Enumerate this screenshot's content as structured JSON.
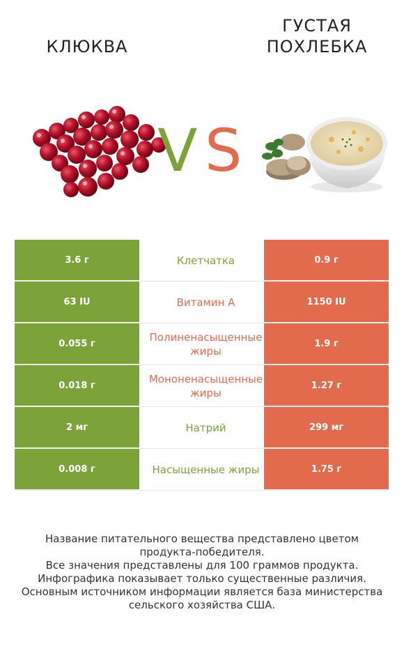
{
  "left_food": {
    "title": "КЛЮКВА",
    "image_icon": "cranberry-pile"
  },
  "right_food": {
    "title_line1": "ГУСТАЯ",
    "title_line2": "ПОХЛЕБКА",
    "image_icon": "chowder-bowl"
  },
  "vs": {
    "v": "V",
    "s": "S",
    "color_left": "#7ca33a",
    "color_right": "#e26b4e"
  },
  "rows": [
    {
      "left": "3.6 г",
      "name": "Клетчатка",
      "right": "0.9 г",
      "winner": "left"
    },
    {
      "left": "63 IU",
      "name": "Витамин A",
      "right": "1150 IU",
      "winner": "right"
    },
    {
      "left": "0.055 г",
      "name": "Полиненасыщенные жиры",
      "right": "1.9 г",
      "winner": "right"
    },
    {
      "left": "0.018 г",
      "name": "Мононенасыщенные жиры",
      "right": "1.27 г",
      "winner": "right"
    },
    {
      "left": "2 мг",
      "name": "Натрий",
      "right": "299 мг",
      "winner": "left"
    },
    {
      "left": "0.008 г",
      "name": "Насыщенные жиры",
      "right": "1.75 г",
      "winner": "left"
    }
  ],
  "footer": {
    "line1": "Название питательного вещества представлено цветом",
    "line2": "продукта-победителя.",
    "line3": "Все значения представлены для 100 граммов продукта.",
    "line4": "Инфографика показывает только существенные различия.",
    "line5": "Основным источником информации является база министерства",
    "line6": "сельского хозяйства США."
  }
}
